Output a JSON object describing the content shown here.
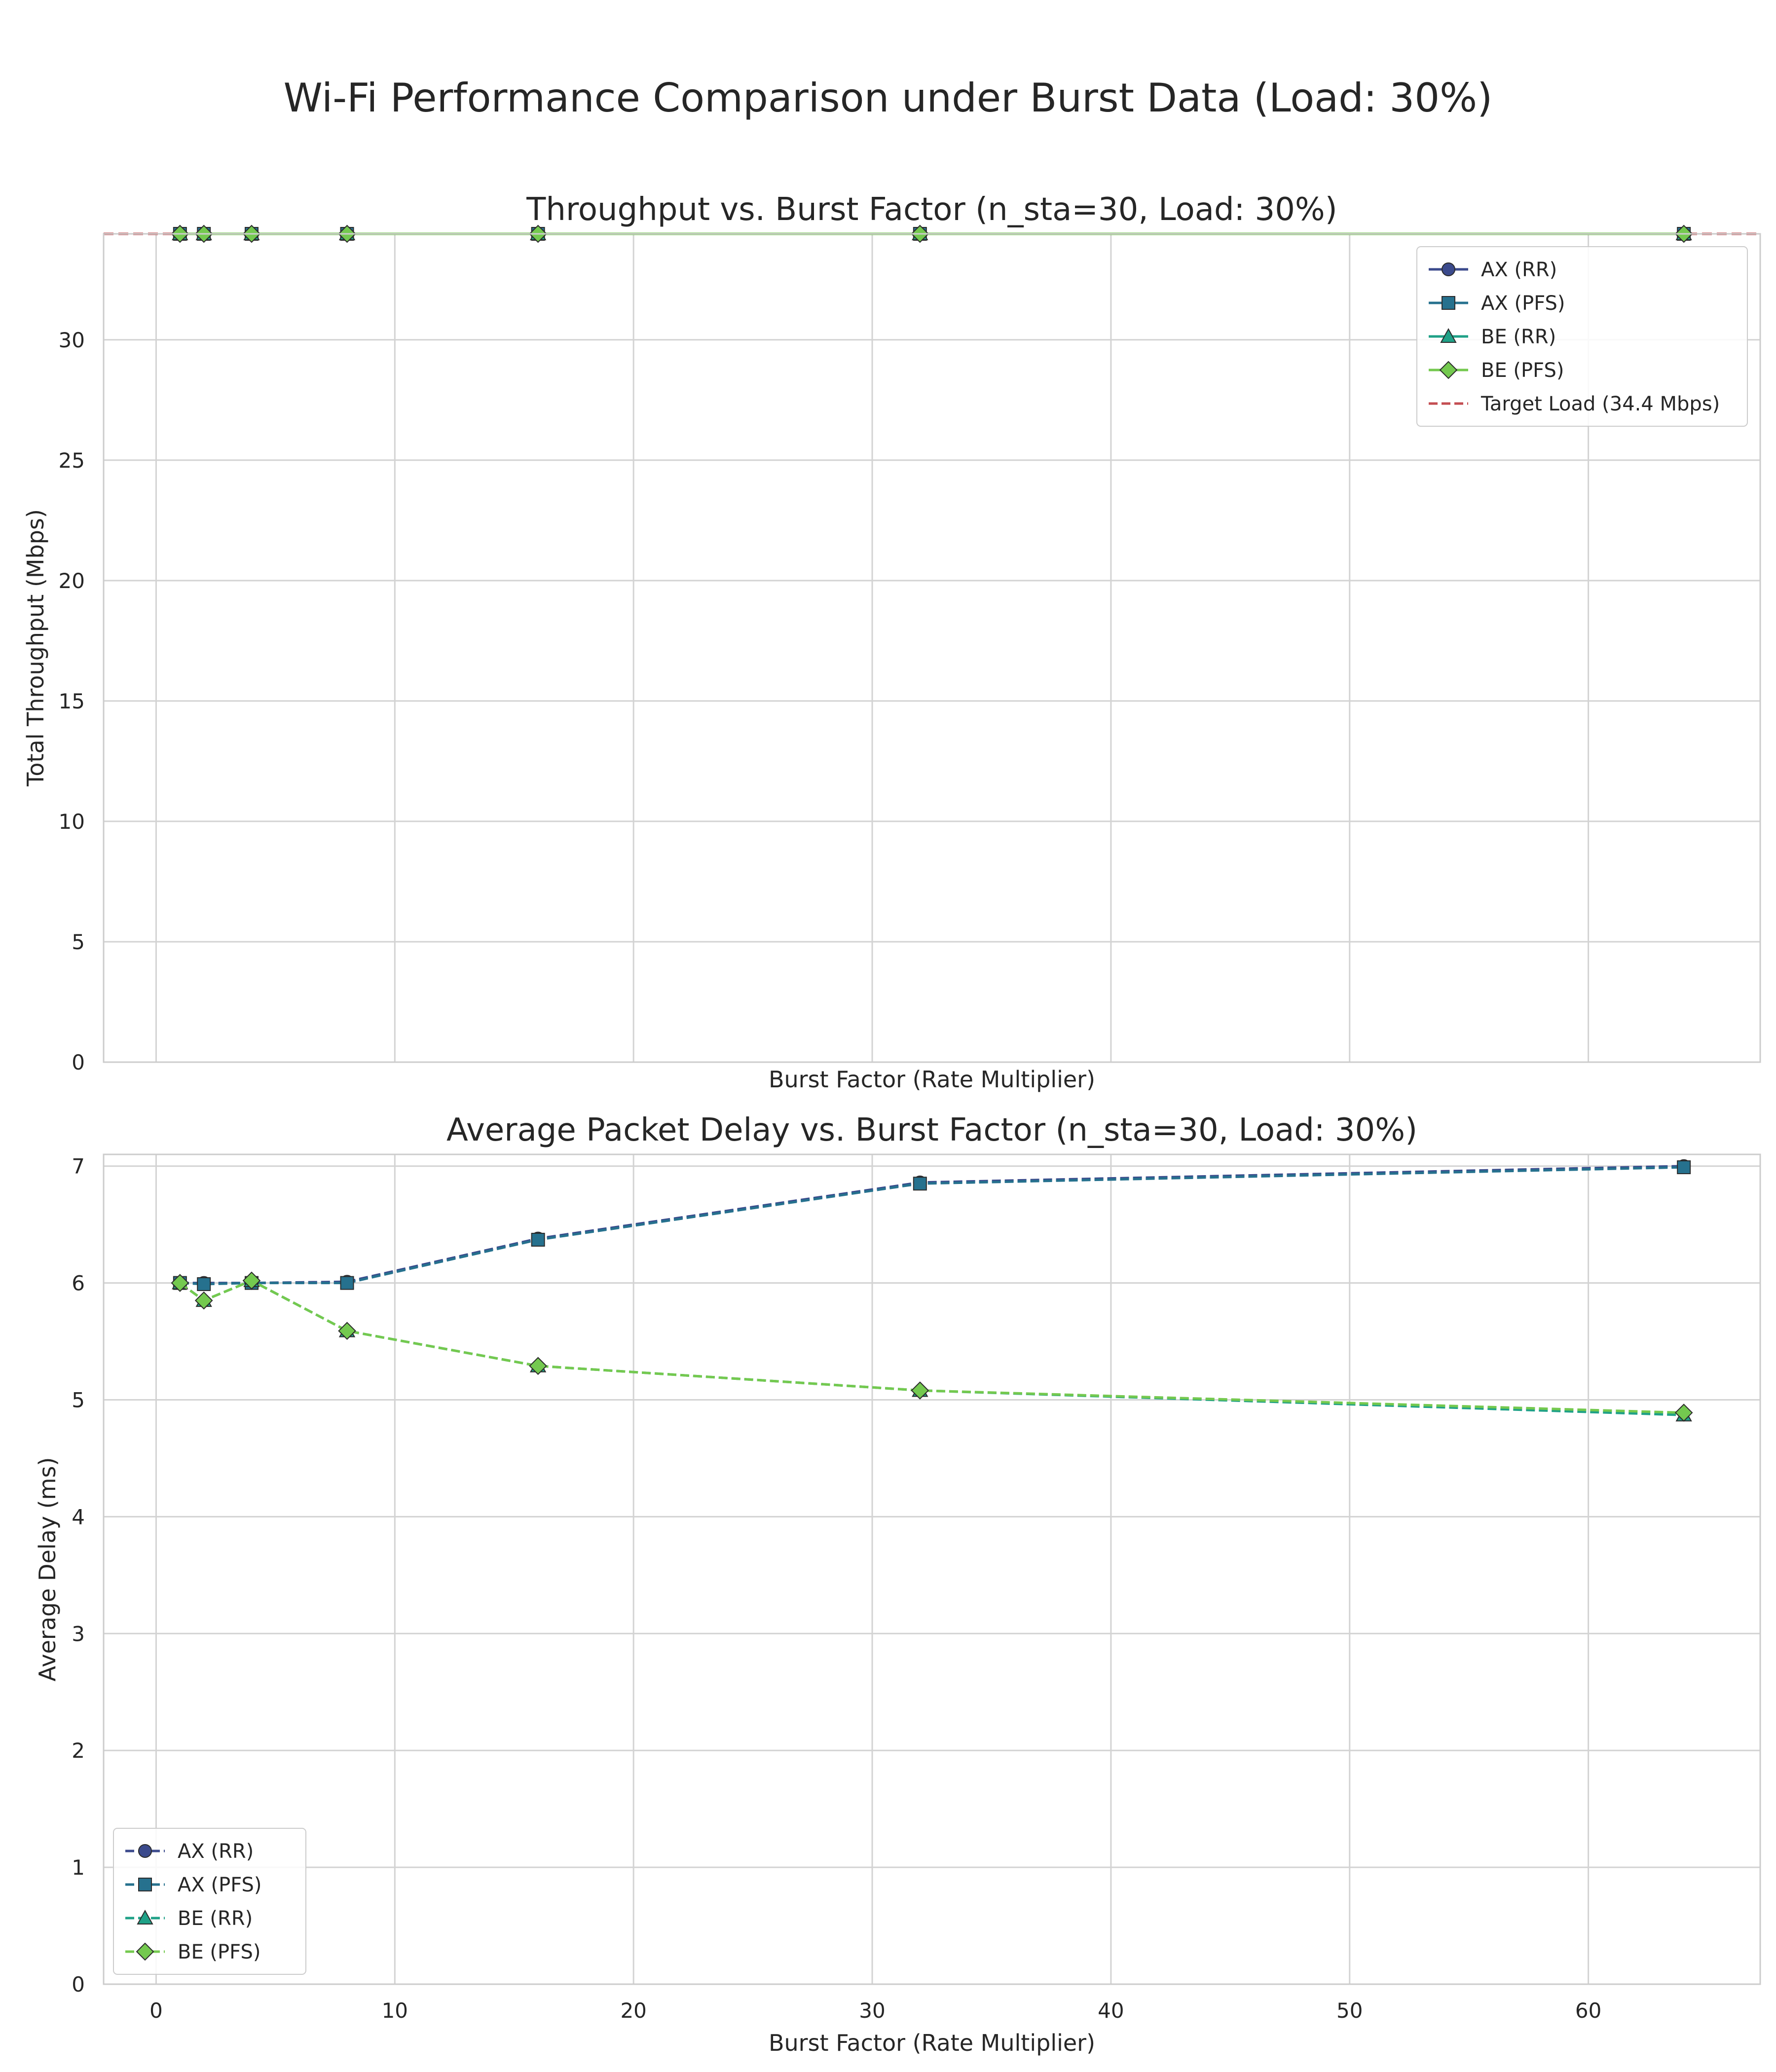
{
  "suptitle": "Wi-Fi Performance Comparison under Burst Data (Load: 30%)",
  "colors": {
    "ax_rr": "#3b4a8c",
    "ax_pfs": "#26718e",
    "be_rr": "#1fa187",
    "be_pfs": "#74c94f",
    "target": "#c44e52",
    "grid": "#d3d3d3",
    "axes_edge": "#cccccc"
  },
  "chart_data": [
    {
      "type": "line",
      "title": "Throughput vs. Burst Factor (n_sta=30, Load: 30%)",
      "xlabel": "Burst Factor (Rate Multiplier)",
      "ylabel": "Total Throughput (Mbps)",
      "xlim": [
        -2.2,
        67.2
      ],
      "ylim": [
        0,
        34.4
      ],
      "x_ticks": [
        0,
        10,
        20,
        30,
        40,
        50,
        60
      ],
      "x_tick_labels_shown": false,
      "y_ticks": [
        0,
        5,
        10,
        15,
        20,
        25,
        30
      ],
      "y_tick_labels": [
        "0",
        "5",
        "10",
        "15",
        "20",
        "25",
        "30"
      ],
      "grid": true,
      "legend_position": "top-right",
      "x": [
        1,
        2,
        4,
        8,
        16,
        32,
        64
      ],
      "series": [
        {
          "name": "AX (RR)",
          "color_key": "ax_rr",
          "marker": "circle",
          "dash": "solid",
          "values": [
            34.4,
            34.4,
            34.4,
            34.4,
            34.4,
            34.4,
            34.4
          ]
        },
        {
          "name": "AX (PFS)",
          "color_key": "ax_pfs",
          "marker": "square",
          "dash": "solid",
          "values": [
            34.4,
            34.4,
            34.4,
            34.4,
            34.4,
            34.4,
            34.4
          ]
        },
        {
          "name": "BE (RR)",
          "color_key": "be_rr",
          "marker": "triangle",
          "dash": "solid",
          "values": [
            34.4,
            34.4,
            34.4,
            34.4,
            34.4,
            34.4,
            34.4
          ]
        },
        {
          "name": "BE (PFS)",
          "color_key": "be_pfs",
          "marker": "diamond",
          "dash": "solid",
          "values": [
            34.4,
            34.4,
            34.4,
            34.4,
            34.4,
            34.4,
            34.4
          ]
        }
      ],
      "reference_line": {
        "name": "Target Load (34.4 Mbps)",
        "color_key": "target",
        "value": 34.4,
        "dash": "dashed"
      }
    },
    {
      "type": "line",
      "title": "Average Packet Delay vs. Burst Factor (n_sta=30, Load: 30%)",
      "xlabel": "Burst Factor (Rate Multiplier)",
      "ylabel": "Average Delay (ms)",
      "xlim": [
        -2.2,
        67.2
      ],
      "ylim": [
        0,
        7.1
      ],
      "x_ticks": [
        0,
        10,
        20,
        30,
        40,
        50,
        60
      ],
      "x_tick_labels": [
        "0",
        "10",
        "20",
        "30",
        "40",
        "50",
        "60"
      ],
      "y_ticks": [
        0,
        1,
        2,
        3,
        4,
        5,
        6,
        7
      ],
      "y_tick_labels": [
        "0",
        "1",
        "2",
        "3",
        "4",
        "5",
        "6",
        "7"
      ],
      "grid": true,
      "legend_position": "bottom-left",
      "x": [
        1,
        2,
        4,
        8,
        16,
        32,
        64
      ],
      "series": [
        {
          "name": "AX (RR)",
          "color_key": "ax_rr",
          "marker": "circle",
          "dash": "dashed",
          "values": [
            6.0,
            6.0,
            6.0,
            6.01,
            6.38,
            6.86,
            7.0
          ]
        },
        {
          "name": "AX (PFS)",
          "color_key": "ax_pfs",
          "marker": "square",
          "dash": "dashed",
          "values": [
            6.0,
            5.99,
            6.0,
            6.0,
            6.37,
            6.85,
            6.99
          ]
        },
        {
          "name": "BE (RR)",
          "color_key": "be_rr",
          "marker": "triangle",
          "dash": "dashed",
          "values": [
            6.0,
            5.85,
            6.02,
            5.59,
            5.29,
            5.08,
            4.87
          ]
        },
        {
          "name": "BE (PFS)",
          "color_key": "be_pfs",
          "marker": "diamond",
          "dash": "dashed",
          "values": [
            6.0,
            5.85,
            6.02,
            5.59,
            5.29,
            5.08,
            4.89
          ]
        }
      ]
    }
  ]
}
